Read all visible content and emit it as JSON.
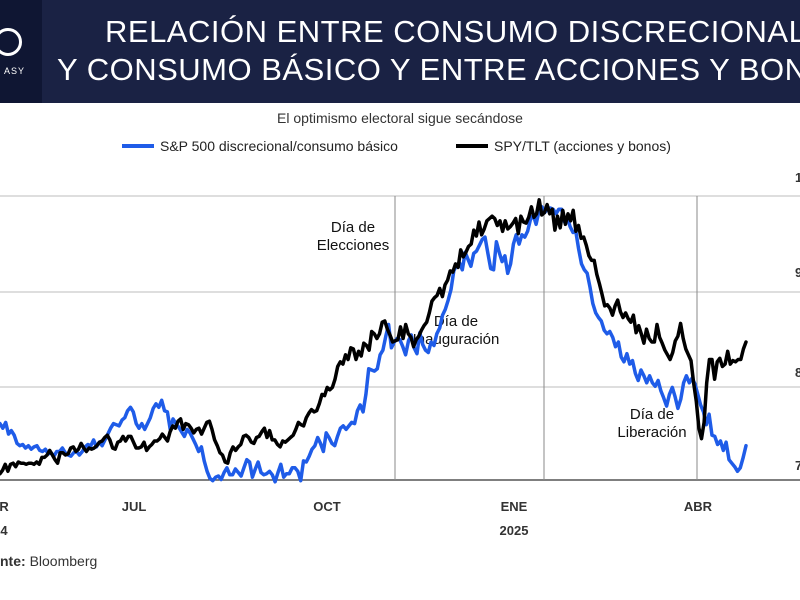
{
  "header": {
    "title_line1": "RELACIÓN ENTRE CONSUMO DISCRECIONAL",
    "title_line2": "Y CONSUMO BÁSICO Y ENTRE ACCIONES Y BONOS",
    "brand_fragment": "ASY"
  },
  "source": {
    "label": "nte:",
    "value": "Bloomberg"
  },
  "chart_data": {
    "type": "line",
    "title": "El optimismo electoral sigue secándose",
    "xlabel": "",
    "ylabel": "",
    "x_ticks": [
      {
        "label": "R",
        "year": "4"
      },
      {
        "label": "JUL",
        "year": ""
      },
      {
        "label": "OCT",
        "year": ""
      },
      {
        "label": "ENE",
        "year": "2025"
      },
      {
        "label": "ABR",
        "year": ""
      }
    ],
    "y_ticks_right": [
      "1",
      "9",
      "8",
      "7"
    ],
    "annotations": [
      {
        "line1": "Día de",
        "line2": "Elecciones"
      },
      {
        "line1": "Día de",
        "line2": "Inauguración"
      },
      {
        "line1": "Día de",
        "line2": "Liberación"
      }
    ],
    "ylim": [
      0,
      100
    ],
    "series": [
      {
        "name": "S&P 500 discrecional/consumo básico",
        "color": "#1f5ce8",
        "values": [
          45,
          41,
          46,
          36,
          39,
          35,
          28,
          26,
          27,
          24,
          26,
          23,
          25,
          26,
          22,
          21,
          23,
          19,
          20,
          17,
          21,
          21,
          24,
          20,
          18,
          17,
          20,
          21,
          18,
          21,
          25,
          27,
          26,
          31,
          25,
          29,
          26,
          31,
          36,
          41,
          45,
          44,
          43,
          48,
          50,
          56,
          59,
          55,
          45,
          41,
          45,
          40,
          45,
          50,
          58,
          62,
          59,
          65,
          56,
          55,
          40,
          49,
          45,
          42,
          38,
          34,
          40,
          37,
          32,
          27,
          21,
          25,
          13,
          4,
          -2,
          -4,
          -1,
          0,
          -3,
          3,
          7,
          1,
          1,
          6,
          3,
          0,
          7,
          14,
          12,
          -1,
          6,
          12,
          3,
          1,
          2,
          4,
          1,
          -5,
          3,
          10,
          -1,
          2,
          2,
          7,
          7,
          4,
          -4,
          13,
          12,
          17,
          23,
          26,
          33,
          28,
          21,
          37,
          33,
          28,
          26,
          34,
          41,
          43,
          40,
          43,
          46,
          45,
          56,
          61,
          55,
          70,
          92,
          91,
          90,
          92,
          104,
          108,
          120,
          130,
          110,
          115,
          118,
          117,
          111,
          104,
          116,
          121,
          110,
          105,
          123,
          113,
          108,
          106,
          115,
          112,
          122,
          127,
          138,
          143,
          151,
          160,
          176,
          181,
          183,
          177,
          192,
          186,
          180,
          191,
          193,
          198,
          203,
          205,
          191,
          178,
          177,
          201,
          192,
          184,
          189,
          174,
          182,
          199,
          207,
          199,
          207,
          205,
          210,
          220,
          224,
          216,
          227,
          231,
          226,
          229,
          230,
          229,
          225,
          229,
          229,
          218,
          222,
          214,
          209,
          210,
          195,
          182,
          177,
          174,
          162,
          148,
          140,
          136,
          133,
          125,
          122,
          124,
          119,
          111,
          115,
          102,
          98,
          105,
          96,
          99,
          88,
          82,
          91,
          86,
          80,
          86,
          80,
          77,
          82,
          73,
          67,
          60,
          70,
          76,
          68,
          58,
          66,
          80,
          86,
          80,
          84,
          79,
          70,
          61,
          55,
          44,
          53,
          35,
          34,
          27,
          30,
          22,
          29,
          14,
          11,
          8,
          4,
          7,
          16,
          26
        ]
      },
      {
        "name": "SPY/TLT (acciones y bonos)",
        "color": "#000000",
        "values": [
          2,
          5,
          10,
          4,
          10,
          11,
          8,
          12,
          11,
          11,
          10,
          11,
          11,
          10,
          12,
          10,
          16,
          16,
          18,
          22,
          18,
          14,
          11,
          20,
          20,
          18,
          19,
          24,
          25,
          21,
          23,
          28,
          24,
          21,
          24,
          23,
          24,
          26,
          29,
          30,
          33,
          35,
          31,
          24,
          23,
          29,
          30,
          34,
          30,
          34,
          34,
          29,
          24,
          24,
          25,
          29,
          22,
          25,
          27,
          30,
          30,
          32,
          36,
          33,
          30,
          38,
          43,
          41,
          47,
          49,
          40,
          45,
          44,
          41,
          37,
          40,
          41,
          36,
          41,
          46,
          47,
          40,
          31,
          26,
          20,
          18,
          12,
          11,
          20,
          25,
          22,
          25,
          27,
          34,
          35,
          33,
          29,
          28,
          33,
          34,
          38,
          41,
          33,
          39,
          31,
          31,
          27,
          25,
          30,
          29,
          31,
          33,
          35,
          40,
          46,
          44,
          43,
          50,
          54,
          57,
          55,
          56,
          62,
          70,
          69,
          76,
          74,
          76,
          83,
          94,
          98,
          96,
          104,
          100,
          110,
          109,
          100,
          107,
          103,
          114,
          112,
          108,
          124,
          122,
          118,
          122,
          132,
          133,
          126,
          121,
          115,
          116,
          117,
          128,
          118,
          130,
          122,
          119,
          111,
          117,
          120,
          125,
          129,
          132,
          140,
          150,
          153,
          155,
          161,
          154,
          164,
          168,
          176,
          175,
          182,
          179,
          194,
          188,
          192,
          197,
          199,
          211,
          206,
          218,
          207,
          212,
          219,
          221,
          223,
          221,
          215,
          219,
          210,
          219,
          212,
          214,
          217,
          221,
          208,
          223,
          218,
          217,
          222,
          231,
          222,
          225,
          237,
          224,
          226,
          233,
          225,
          229,
          211,
          223,
          213,
          228,
          216,
          225,
          219,
          228,
          210,
          215,
          204,
          205,
          198,
          189,
          185,
          185,
          173,
          165,
          156,
          146,
          147,
          144,
          138,
          146,
          151,
          141,
          136,
          140,
          135,
          132,
          138,
          123,
          129,
          122,
          114,
          126,
          118,
          115,
          115,
          130,
          119,
          114,
          108,
          104,
          100,
          106,
          116,
          120,
          131,
          118,
          109,
          104,
          99,
          80,
          64,
          41,
          32,
          46,
          80,
          100,
          100,
          83,
          98,
          101,
          94,
          96,
          107,
          96,
          99,
          98,
          100,
          100,
          109,
          115
        ]
      }
    ]
  }
}
